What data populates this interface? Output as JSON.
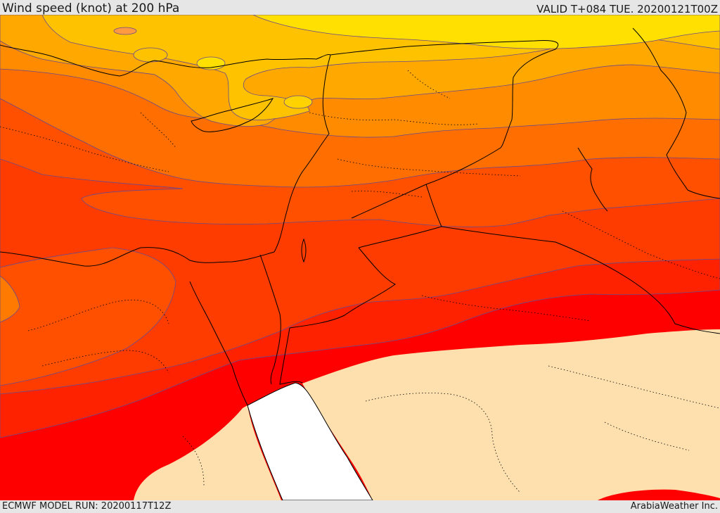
{
  "header": {
    "title": "Wind speed (knot) at 200 hPa",
    "valid": "VALID T+084 TUE. 20200121T00Z"
  },
  "footer": {
    "model_run": "ECMWF MODEL RUN: 20200117T12Z",
    "credit": "ArabiaWeather Inc."
  },
  "colors": {
    "band_1": "#ffe000",
    "band_2": "#ffc200",
    "band_3": "#ffa800",
    "band_4": "#ff8c00",
    "band_5": "#ff6e00",
    "band_6": "#ff5000",
    "band_7": "#ff3c00",
    "band_8": "#ff2200",
    "band_9": "#ff0000",
    "land_masked": "#fde0ad",
    "sea_masked": "#ffffff",
    "coastline": "#000000",
    "contour_line": "#6a4a8a"
  }
}
